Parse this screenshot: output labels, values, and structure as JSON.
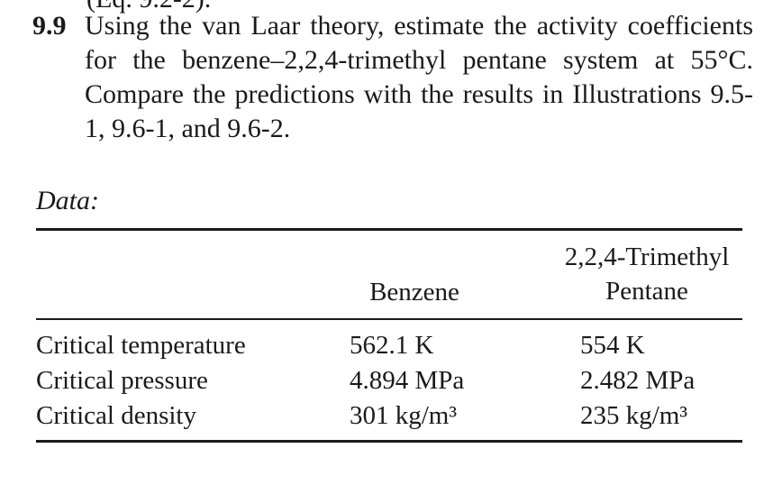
{
  "previous_fragment": "(Eq. 9.2-2).",
  "problem": {
    "number": "9.9",
    "text": "Using the van Laar theory, estimate the activity coefficients for the benzene–2,2,4-trimethyl pentane system at 55°C. Compare the predictions with the results in Illustrations 9.5-1, 9.6-1, and 9.6-2."
  },
  "data_label": "Data:",
  "table": {
    "columns": [
      {
        "line1": "",
        "line2": "Benzene"
      },
      {
        "line1": "2,2,4-Trimethyl",
        "line2": "Pentane"
      }
    ],
    "rows": [
      {
        "property": "Critical temperature",
        "benzene": "562.1 K",
        "trimethyl_pentane": "554 K"
      },
      {
        "property": "Critical pressure",
        "benzene": "4.894 MPa",
        "trimethyl_pentane": "2.482 MPa"
      },
      {
        "property": "Critical density",
        "benzene": "301 kg/m³",
        "trimethyl_pentane": "235 kg/m³"
      }
    ]
  }
}
